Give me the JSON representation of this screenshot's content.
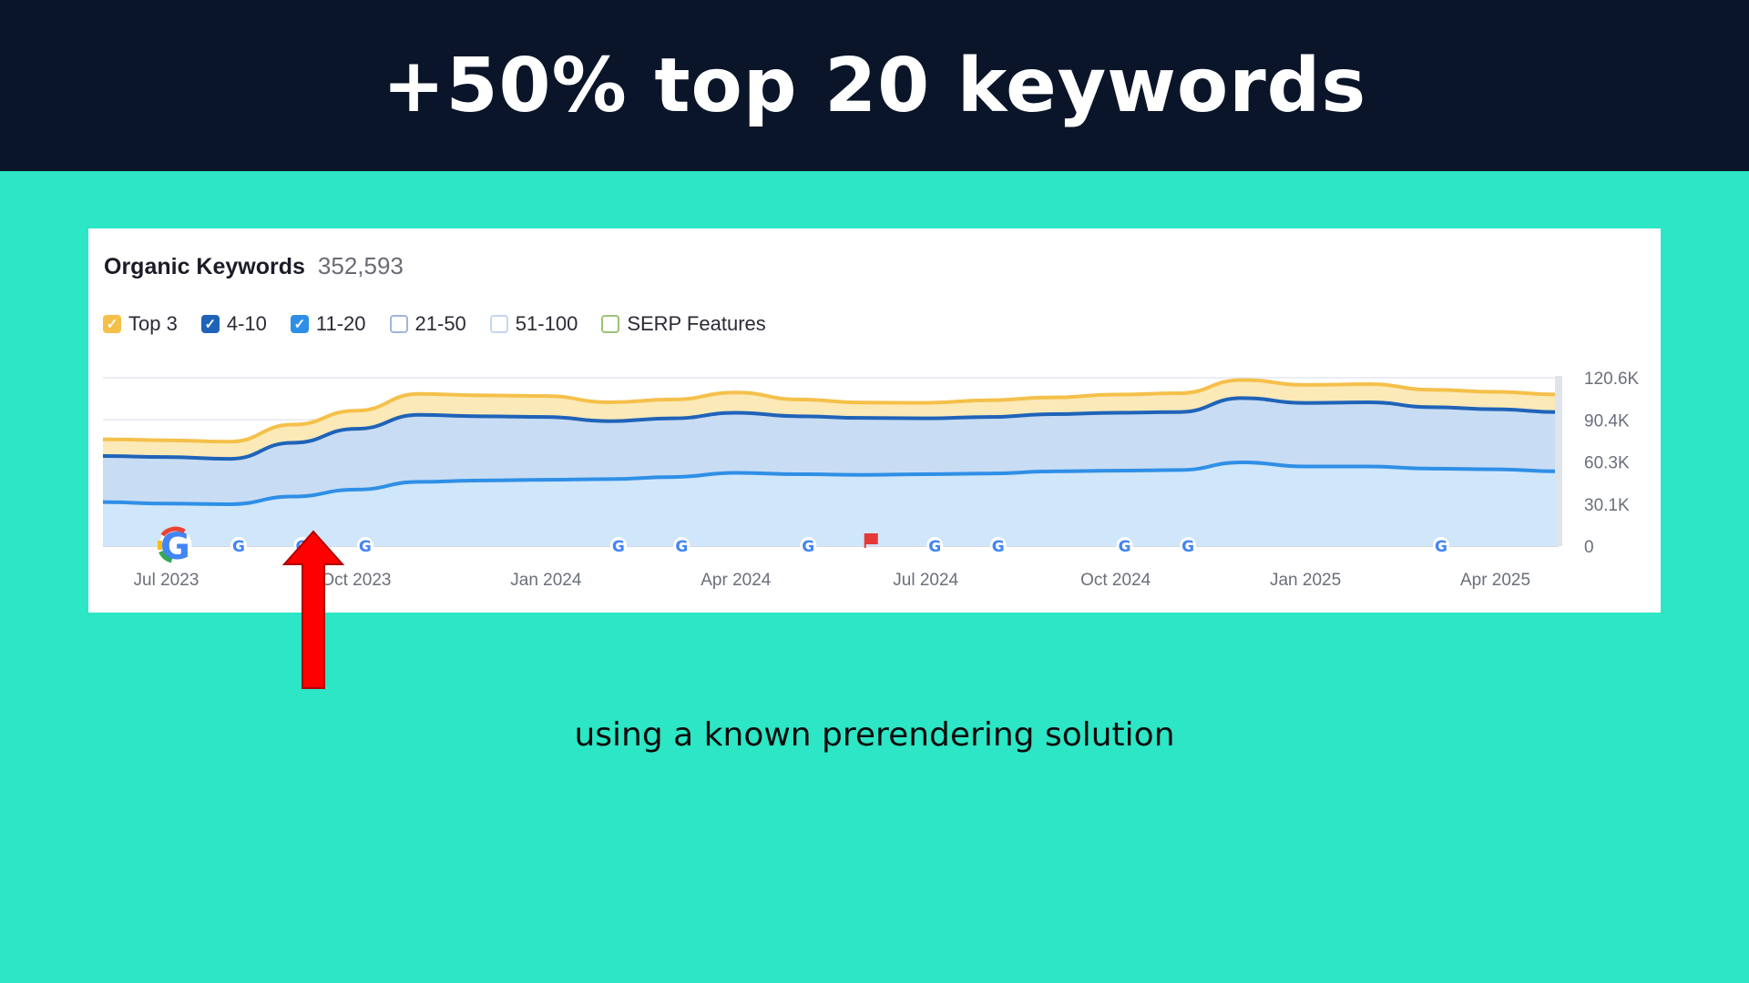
{
  "slide": {
    "title": "+50% top 20 keywords",
    "subtitle": "using a known prerendering solution"
  },
  "card": {
    "title": "Organic Keywords",
    "count": "352,593"
  },
  "legend": [
    {
      "label": "Top 3",
      "checked": true,
      "color": "#f5c04a"
    },
    {
      "label": "4-10",
      "checked": true,
      "color": "#1f63b8"
    },
    {
      "label": "11-20",
      "checked": true,
      "color": "#2f8fe6"
    },
    {
      "label": "21-50",
      "checked": false,
      "color": "#9fb6d8"
    },
    {
      "label": "51-100",
      "checked": false,
      "color": "#c4d6ee"
    },
    {
      "label": "SERP Features",
      "checked": false,
      "color": "#9cc27a"
    }
  ],
  "chart_data": {
    "type": "area",
    "x_ticks": [
      "Jul 2023",
      "Oct 2023",
      "Jan 2024",
      "Apr 2024",
      "Jul 2024",
      "Oct 2024",
      "Jan 2025",
      "Apr 2025"
    ],
    "y_ticks": [
      "120.6K",
      "90.4K",
      "60.3K",
      "30.1K",
      "0"
    ],
    "ylim": [
      0,
      120600
    ],
    "x_months_label": [
      "2023-06",
      "2023-07",
      "2023-08",
      "2023-09",
      "2023-10",
      "2023-11",
      "2023-12",
      "2024-01",
      "2024-02",
      "2024-03",
      "2024-04",
      "2024-05",
      "2024-06",
      "2024-07",
      "2024-08",
      "2024-09",
      "2024-10",
      "2024-11",
      "2024-12",
      "2025-01",
      "2025-02",
      "2025-03",
      "2025-04",
      "2025-05"
    ],
    "series": [
      {
        "name": "Top 3",
        "color": "#f5c04a",
        "fill": "#fbe9b8",
        "values": [
          76500,
          75800,
          74800,
          87000,
          97000,
          109000,
          108000,
          107500,
          103000,
          105000,
          110000,
          105000,
          102800,
          102600,
          104500,
          106500,
          108500,
          109500,
          119000,
          115500,
          116000,
          112000,
          110500,
          108500
        ]
      },
      {
        "name": "4-10",
        "color": "#1f63b8",
        "fill": "#c8dcf4",
        "values": [
          64500,
          63800,
          62500,
          74000,
          84000,
          94000,
          93000,
          92500,
          89500,
          91500,
          95500,
          93000,
          91800,
          91500,
          92500,
          94500,
          95500,
          96000,
          106000,
          102500,
          103000,
          99500,
          98000,
          96000
        ]
      },
      {
        "name": "11-20",
        "color": "#2f8fe6",
        "fill": "#cfe6fb",
        "values": [
          31500,
          30500,
          30000,
          35500,
          40500,
          46000,
          47000,
          47500,
          48000,
          49500,
          52500,
          51500,
          51000,
          51500,
          52000,
          53500,
          54000,
          54500,
          60000,
          57000,
          57000,
          55500,
          55000,
          53500
        ]
      }
    ],
    "events": [
      {
        "type": "google",
        "month": "2023-07",
        "size": "large"
      },
      {
        "type": "google",
        "month": "2023-08"
      },
      {
        "type": "google",
        "month": "2023-09"
      },
      {
        "type": "google",
        "month": "2023-10"
      },
      {
        "type": "google",
        "month": "2024-02"
      },
      {
        "type": "google",
        "month": "2024-03"
      },
      {
        "type": "google",
        "month": "2024-05"
      },
      {
        "type": "flag",
        "month": "2024-06"
      },
      {
        "type": "google",
        "month": "2024-07"
      },
      {
        "type": "google",
        "month": "2024-08"
      },
      {
        "type": "google",
        "month": "2024-10"
      },
      {
        "type": "google",
        "month": "2024-11"
      },
      {
        "type": "google",
        "month": "2025-03"
      }
    ],
    "grid": true,
    "legend_position": "top-left"
  }
}
